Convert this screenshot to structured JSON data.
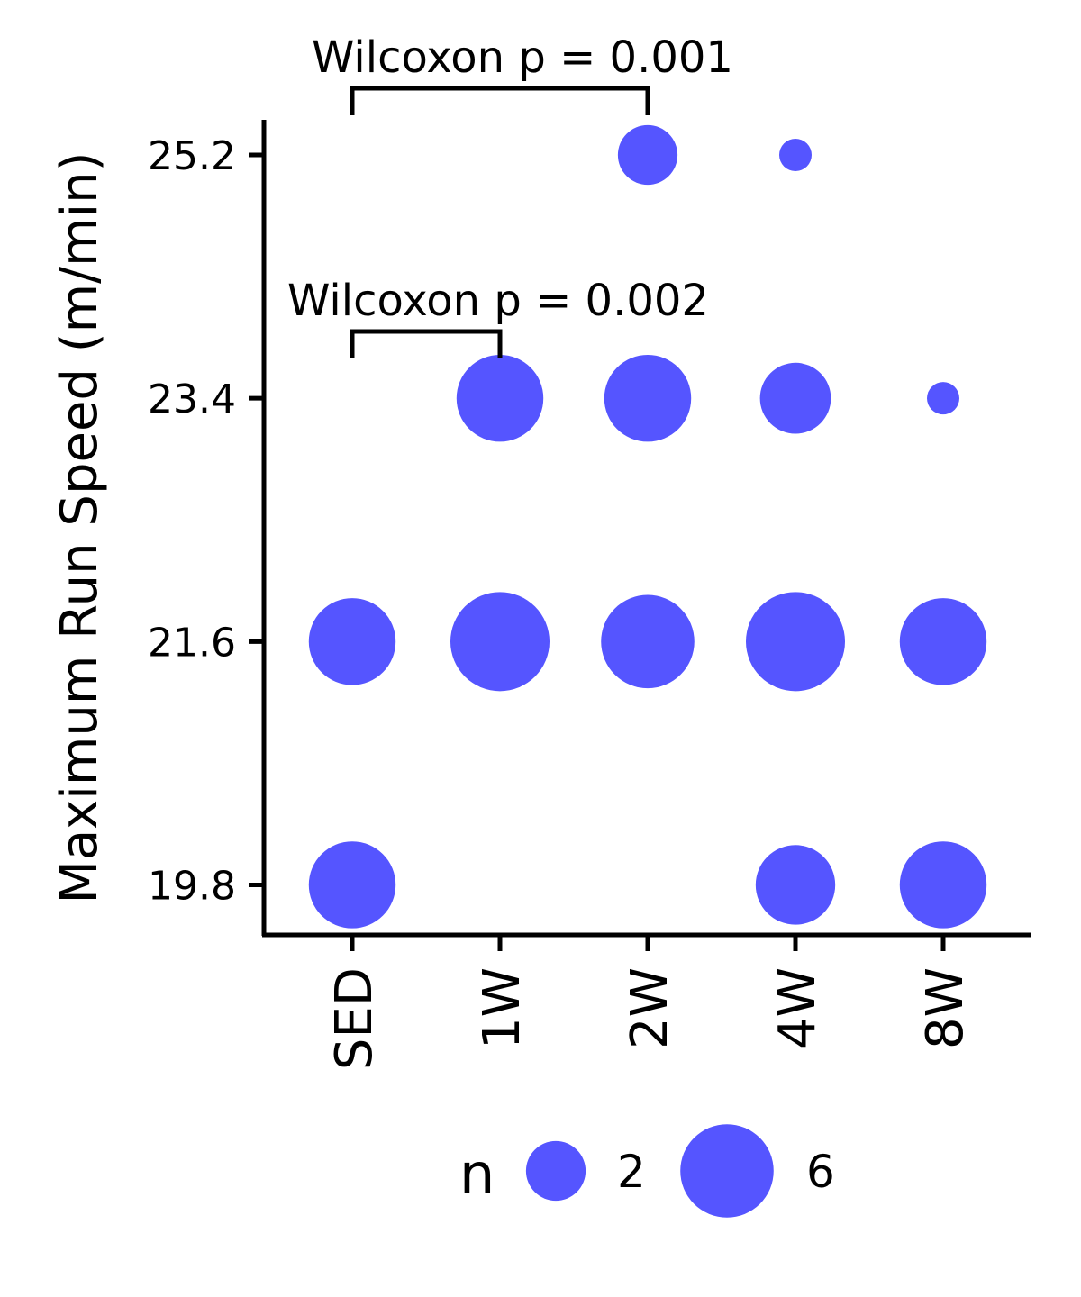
{
  "chart_data": {
    "type": "scatter",
    "ylabel": "Maximum Run Speed (m/min)",
    "xlabel": "",
    "categories": [
      "SED",
      "1W",
      "2W",
      "4W",
      "8W"
    ],
    "y_ticks": [
      "19.8",
      "21.6",
      "23.4",
      "25.2"
    ],
    "ylim": [
      19.43,
      25.46
    ],
    "color": "#5555FF",
    "points": [
      {
        "x": "SED",
        "y": 19.8,
        "n": 5
      },
      {
        "x": "SED",
        "y": 21.6,
        "n": 5
      },
      {
        "x": "1W",
        "y": 21.6,
        "n": 7
      },
      {
        "x": "1W",
        "y": 23.4,
        "n": 5
      },
      {
        "x": "2W",
        "y": 21.6,
        "n": 6
      },
      {
        "x": "2W",
        "y": 23.4,
        "n": 5
      },
      {
        "x": "2W",
        "y": 25.2,
        "n": 2
      },
      {
        "x": "4W",
        "y": 19.8,
        "n": 4
      },
      {
        "x": "4W",
        "y": 21.6,
        "n": 7
      },
      {
        "x": "4W",
        "y": 23.4,
        "n": 3
      },
      {
        "x": "4W",
        "y": 25.2,
        "n": 1
      },
      {
        "x": "8W",
        "y": 19.8,
        "n": 5
      },
      {
        "x": "8W",
        "y": 21.6,
        "n": 5
      },
      {
        "x": "8W",
        "y": 23.4,
        "n": 1
      }
    ],
    "annotations": [
      {
        "text": "Wilcoxon p = 0.001",
        "from": "SED",
        "to": "2W"
      },
      {
        "text": "Wilcoxon p = 0.002",
        "from": "SED",
        "to": "1W"
      }
    ],
    "legend": {
      "title": "n",
      "placement": "bottom",
      "entries": [
        {
          "label": "2",
          "n": 2
        },
        {
          "label": "6",
          "n": 6
        }
      ]
    }
  }
}
